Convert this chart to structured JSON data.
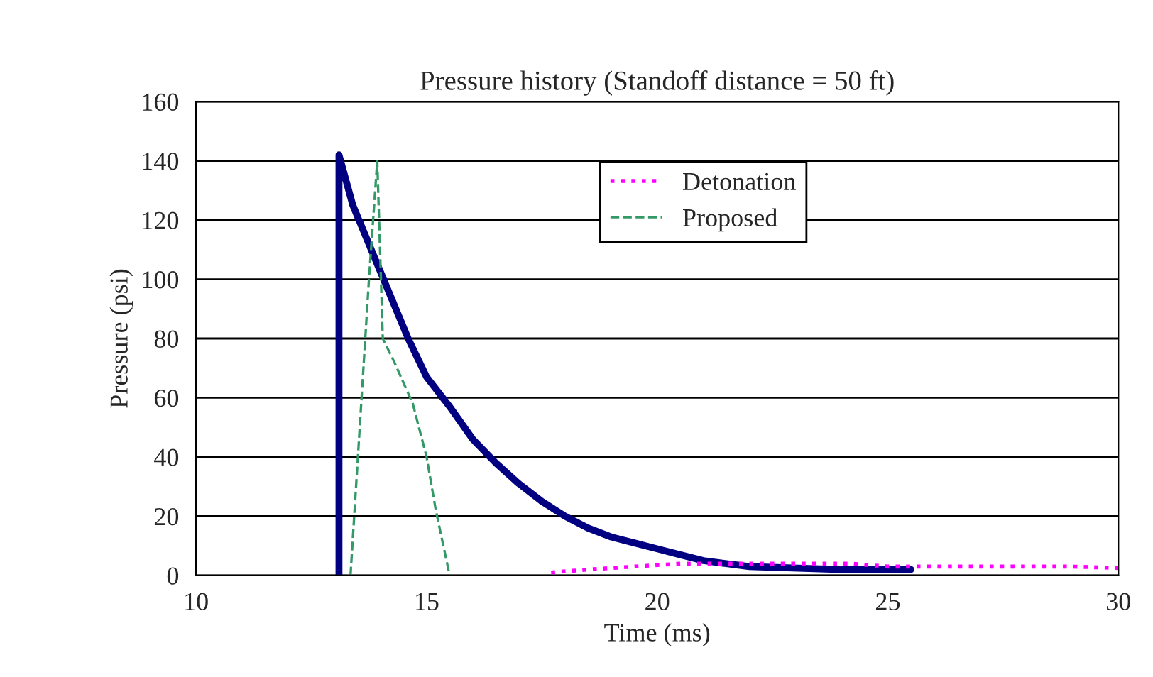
{
  "chart_data": {
    "type": "line",
    "title": "Pressure history (Standoff distance = 50 ft)",
    "xlabel": "Time (ms)",
    "ylabel": "Pressure (psi)",
    "xlim": [
      10,
      30
    ],
    "xticks": [
      10,
      15,
      20,
      25,
      30
    ],
    "ylim": [
      0,
      160
    ],
    "yticks": [
      0,
      20,
      40,
      60,
      80,
      100,
      120,
      140,
      160
    ],
    "grid": "y",
    "legend": "top",
    "series": [
      {
        "color": "#000080",
        "line_style": "solid",
        "x": [
          13.1,
          13.1,
          13.4,
          13.8,
          14.2,
          14.6,
          15.0,
          15.5,
          16.0,
          16.5,
          17.0,
          17.5,
          18.0,
          18.5,
          19.0,
          19.5,
          20.0,
          20.5,
          21.0,
          21.5,
          22.0,
          24.0,
          25.5
        ],
        "values": [
          0,
          142,
          125,
          110,
          95,
          80,
          67,
          57,
          46,
          38,
          31,
          25,
          20,
          16,
          13,
          11,
          9,
          7,
          5,
          4,
          3,
          2,
          2
        ]
      },
      {
        "name": "Detonation",
        "color": "#ff00ff",
        "line_style": "dotted",
        "x": [
          17.7,
          18.5,
          19.5,
          20.5,
          21.5,
          23.0,
          24.2,
          25.0,
          27.0,
          29.0,
          30.0
        ],
        "values": [
          1,
          2,
          3,
          4,
          4,
          4,
          4,
          3,
          3,
          3,
          2.5
        ]
      },
      {
        "name": "Proposed",
        "color": "#339966",
        "line_style": "dashed",
        "x": [
          13.35,
          13.55,
          13.75,
          13.93,
          14.05,
          14.3,
          14.7,
          15.0,
          15.2,
          15.5
        ],
        "values": [
          0,
          50,
          100,
          140,
          80,
          72,
          58,
          40,
          22,
          0
        ]
      }
    ]
  }
}
